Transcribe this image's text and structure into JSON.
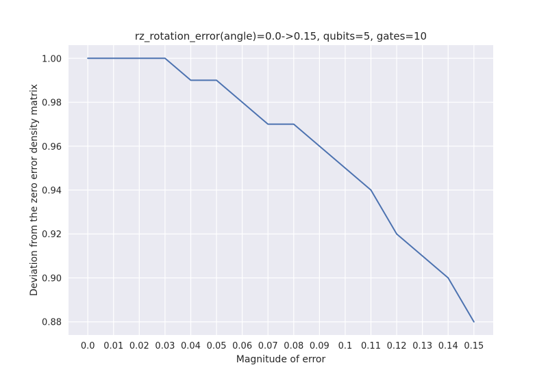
{
  "chart_data": {
    "type": "line",
    "title": "rz_rotation_error(angle)=0.0->0.15, qubits=5, gates=10",
    "xlabel": "Magnitude of error",
    "ylabel": "Deviation from the zero error density matrix",
    "x": [
      0.0,
      0.01,
      0.02,
      0.03,
      0.04,
      0.05,
      0.06,
      0.07,
      0.08,
      0.09,
      0.1,
      0.11,
      0.12,
      0.13,
      0.14,
      0.15
    ],
    "x_tick_labels": [
      "0.0",
      "0.01",
      "0.02",
      "0.03",
      "0.04",
      "0.05",
      "0.06",
      "0.07",
      "0.08",
      "0.09",
      "0.1",
      "0.11",
      "0.12",
      "0.13",
      "0.14",
      "0.15"
    ],
    "y_ticks": [
      0.88,
      0.9,
      0.92,
      0.94,
      0.96,
      0.98,
      1.0
    ],
    "y_tick_labels": [
      "0.88",
      "0.90",
      "0.92",
      "0.94",
      "0.96",
      "0.98",
      "1.00"
    ],
    "series": [
      {
        "values": [
          1.0,
          1.0,
          1.0,
          1.0,
          0.99,
          0.99,
          0.98,
          0.97,
          0.97,
          0.96,
          0.95,
          0.94,
          0.92,
          0.91,
          0.9,
          0.88
        ],
        "color": "#4c72b0"
      }
    ],
    "xlim": [
      -0.0075,
      0.1575
    ],
    "ylim": [
      0.874,
      1.006
    ],
    "grid": true,
    "background_color": "#eaeaf2",
    "grid_color": "#ffffff"
  }
}
